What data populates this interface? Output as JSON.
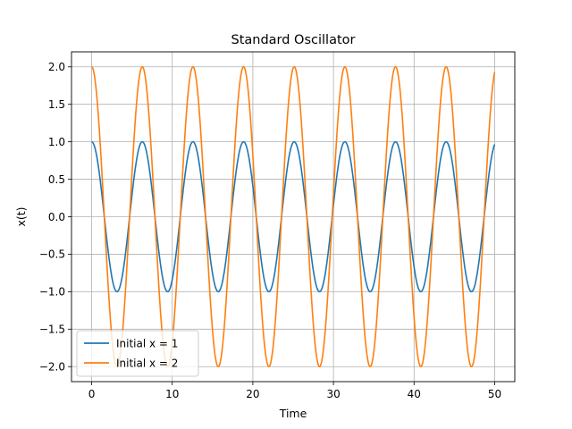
{
  "chart_data": {
    "type": "line",
    "title": "Standard Oscillator",
    "xlabel": "Time",
    "ylabel": "x(t)",
    "xlim": [
      -2.5,
      52.5
    ],
    "ylim": [
      -2.2,
      2.2
    ],
    "xticks": [
      0,
      10,
      20,
      30,
      40,
      50
    ],
    "yticks": [
      -2.0,
      -1.5,
      -1.0,
      -0.5,
      0.0,
      0.5,
      1.0,
      1.5,
      2.0
    ],
    "xtick_labels": [
      "0",
      "10",
      "20",
      "30",
      "40",
      "50"
    ],
    "ytick_labels": [
      "−2.0",
      "−1.5",
      "−1.0",
      "−0.5",
      "0.0",
      "0.5",
      "1.0",
      "1.5",
      "2.0"
    ],
    "grid": true,
    "legend_position": "lower-left",
    "x_domain": [
      0,
      50
    ],
    "series": [
      {
        "name": "Initial x = 1",
        "color": "#1f77b4",
        "amplitude": 1,
        "angular_frequency": 1,
        "function": "x(t) = 1·cos(t)"
      },
      {
        "name": "Initial x = 2",
        "color": "#ff7f0e",
        "amplitude": 2,
        "angular_frequency": 1,
        "function": "x(t) = 2·cos(t)"
      }
    ]
  }
}
